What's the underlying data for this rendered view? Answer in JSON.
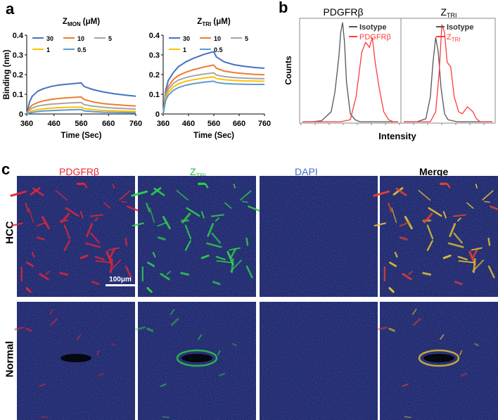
{
  "panels": {
    "a": "a",
    "b": "b",
    "c": "c"
  },
  "chart_data": [
    {
      "type": "line",
      "panel": "a-left",
      "title_main": "Z",
      "title_sub": "MON",
      "title_unit": " (μM)",
      "xlabel": "Time (Sec)",
      "ylabel": "Binding (nm)",
      "xlim": [
        360,
        760
      ],
      "ylim": [
        0,
        0.4
      ],
      "xticks": [
        360,
        460,
        560,
        660,
        760
      ],
      "yticks": [
        0,
        0.1,
        0.2,
        0.3,
        0.4
      ],
      "x": [
        360,
        370,
        380,
        400,
        420,
        450,
        480,
        520,
        555,
        560,
        570,
        600,
        640,
        680,
        720,
        760
      ],
      "series": [
        {
          "name": "30",
          "color": "#4472C4",
          "values": [
            0,
            0.06,
            0.09,
            0.115,
            0.128,
            0.14,
            0.147,
            0.153,
            0.157,
            0.157,
            0.14,
            0.125,
            0.112,
            0.103,
            0.096,
            0.09
          ]
        },
        {
          "name": "10",
          "color": "#ED7D31",
          "values": [
            0,
            0.03,
            0.045,
            0.058,
            0.066,
            0.074,
            0.079,
            0.083,
            0.086,
            0.086,
            0.074,
            0.062,
            0.053,
            0.048,
            0.044,
            0.04
          ]
        },
        {
          "name": "5",
          "color": "#A5A5A5",
          "values": [
            0,
            0.02,
            0.03,
            0.04,
            0.045,
            0.05,
            0.053,
            0.056,
            0.058,
            0.058,
            0.048,
            0.04,
            0.034,
            0.03,
            0.027,
            0.025
          ]
        },
        {
          "name": "1",
          "color": "#FFC000",
          "values": [
            0,
            0.01,
            0.016,
            0.022,
            0.026,
            0.03,
            0.032,
            0.034,
            0.035,
            0.035,
            0.028,
            0.022,
            0.018,
            0.016,
            0.014,
            0.013
          ]
        },
        {
          "name": "0.5",
          "color": "#5B9BD5",
          "values": [
            0,
            0.005,
            0.008,
            0.012,
            0.015,
            0.017,
            0.019,
            0.021,
            0.022,
            0.022,
            0.016,
            0.012,
            0.009,
            0.008,
            0.007,
            0.006
          ]
        }
      ]
    },
    {
      "type": "line",
      "panel": "a-right",
      "title_main": "Z",
      "title_sub": "TRI",
      "title_unit": " (μM)",
      "xlabel": "Time (Sec)",
      "ylabel": "",
      "xlim": [
        360,
        760
      ],
      "ylim": [
        0,
        0.4
      ],
      "xticks": [
        360,
        460,
        560,
        660,
        760
      ],
      "yticks": [
        0,
        0.1,
        0.2,
        0.3,
        0.4
      ],
      "x": [
        360,
        370,
        380,
        400,
        420,
        450,
        480,
        520,
        555,
        560,
        570,
        600,
        640,
        680,
        720,
        760
      ],
      "series": [
        {
          "name": "30",
          "color": "#4472C4",
          "values": [
            0,
            0.12,
            0.17,
            0.21,
            0.24,
            0.265,
            0.283,
            0.302,
            0.315,
            0.315,
            0.29,
            0.265,
            0.25,
            0.242,
            0.236,
            0.232
          ]
        },
        {
          "name": "10",
          "color": "#ED7D31",
          "values": [
            0,
            0.1,
            0.14,
            0.175,
            0.195,
            0.212,
            0.225,
            0.238,
            0.248,
            0.248,
            0.232,
            0.218,
            0.21,
            0.205,
            0.201,
            0.199
          ]
        },
        {
          "name": "5",
          "color": "#A5A5A5",
          "values": [
            0,
            0.09,
            0.125,
            0.155,
            0.172,
            0.185,
            0.194,
            0.202,
            0.208,
            0.208,
            0.198,
            0.19,
            0.185,
            0.182,
            0.18,
            0.179
          ]
        },
        {
          "name": "1",
          "color": "#FFC000",
          "values": [
            0,
            0.08,
            0.11,
            0.137,
            0.153,
            0.166,
            0.174,
            0.182,
            0.188,
            0.188,
            0.18,
            0.174,
            0.17,
            0.168,
            0.167,
            0.166
          ]
        },
        {
          "name": "0.5",
          "color": "#5B9BD5",
          "values": [
            0,
            0.07,
            0.095,
            0.12,
            0.134,
            0.146,
            0.154,
            0.161,
            0.166,
            0.166,
            0.16,
            0.155,
            0.152,
            0.151,
            0.15,
            0.15
          ]
        }
      ]
    },
    {
      "type": "area",
      "panel": "b-left",
      "title": "PDGFRβ",
      "xlabel": "Intensity",
      "ylabel": "Counts",
      "legend": [
        {
          "name": "Isotype",
          "color": "#555555"
        },
        {
          "name": "PDGFRβ",
          "color": "#FF3B3B"
        }
      ],
      "series": [
        {
          "name": "Isotype",
          "color": "#555555",
          "x": [
            0,
            0.1,
            0.2,
            0.3,
            0.34,
            0.38,
            0.4,
            0.42,
            0.44,
            0.46,
            0.5,
            0.55,
            0.6,
            1.0
          ],
          "values": [
            0,
            0,
            0.01,
            0.1,
            0.3,
            0.65,
            0.9,
            1.0,
            0.8,
            0.4,
            0.08,
            0.02,
            0,
            0
          ]
        },
        {
          "name": "PDGFRβ",
          "color": "#FF3B3B",
          "x": [
            0,
            0.4,
            0.5,
            0.56,
            0.62,
            0.66,
            0.7,
            0.73,
            0.76,
            0.8,
            0.85,
            0.9,
            0.95,
            1.0
          ],
          "values": [
            0,
            0,
            0.02,
            0.25,
            0.7,
            0.8,
            0.75,
            0.85,
            0.6,
            0.35,
            0.1,
            0.02,
            0,
            0
          ]
        }
      ]
    },
    {
      "type": "area",
      "panel": "b-right",
      "title_main": "Z",
      "title_sub": "TRI",
      "legend": [
        {
          "name": "Isotype",
          "color": "#555555"
        },
        {
          "name": "Z",
          "sub": "TRI",
          "color": "#FF3B3B"
        }
      ],
      "series": [
        {
          "name": "Isotype",
          "color": "#555555",
          "x": [
            0,
            0.15,
            0.25,
            0.3,
            0.33,
            0.36,
            0.39,
            0.42,
            0.46,
            0.5,
            0.6,
            1.0
          ],
          "values": [
            0,
            0,
            0.03,
            0.25,
            0.6,
            0.85,
            0.7,
            0.35,
            0.08,
            0.02,
            0,
            0
          ]
        },
        {
          "name": "Z TRI",
          "color": "#FF3B3B",
          "x": [
            0,
            0.3,
            0.36,
            0.4,
            0.43,
            0.46,
            0.49,
            0.53,
            0.57,
            0.62,
            0.66,
            0.72,
            0.78,
            0.82,
            0.86,
            1.0
          ],
          "values": [
            0,
            0,
            0.1,
            0.5,
            0.98,
            0.9,
            0.6,
            0.55,
            0.25,
            0.1,
            0.08,
            0.15,
            0.1,
            0.03,
            0,
            0
          ]
        }
      ]
    }
  ],
  "microscopy": {
    "columns": [
      {
        "label": "PDGFRβ",
        "color": "#E8262C"
      },
      {
        "label": "Z",
        "label_sub": "TRI",
        "color": "#2BBE3C"
      },
      {
        "label": "DAPI",
        "color": "#4169C8"
      },
      {
        "label": "Merge",
        "color": "#000000"
      }
    ],
    "rows": [
      {
        "label": "HCC"
      },
      {
        "label": "Normal"
      }
    ],
    "scale_bar": "100μm"
  }
}
